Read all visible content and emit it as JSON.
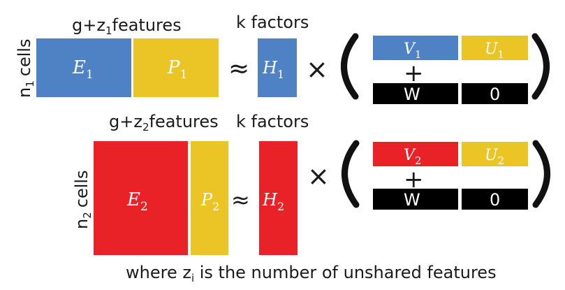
{
  "colors": {
    "blue": "#4f82c4",
    "yellow": "#ebc425",
    "red": "#e82226",
    "black": "#000000",
    "text": "#1a1a1a"
  },
  "row1": {
    "features_base": "g+z",
    "features_sub": "1",
    "features_suffix": "features",
    "factors_label": "k factors",
    "cells_var": "n",
    "cells_sub": "1",
    "cells_word": "cells",
    "E": "E",
    "E_sub": "1",
    "P": "P",
    "P_sub": "1",
    "H": "H",
    "H_sub": "1",
    "V": "V",
    "V_sub": "1",
    "U": "U",
    "U_sub": "1",
    "W": "W",
    "zero": "0"
  },
  "row2": {
    "features_base": "g+z",
    "features_sub": "2",
    "features_suffix": "features",
    "factors_label": "k factors",
    "cells_var": "n",
    "cells_sub": "2",
    "cells_word": "cells",
    "E": "E",
    "E_sub": "2",
    "P": "P",
    "P_sub": "2",
    "H": "H",
    "H_sub": "2",
    "V": "V",
    "V_sub": "2",
    "U": "U",
    "U_sub": "2",
    "W": "W",
    "zero": "0"
  },
  "operators": {
    "approx": "≈",
    "times": "×",
    "plus": "+"
  },
  "footnote": {
    "pre": "where z",
    "sub": "i",
    "post": " is the number of unshared features"
  }
}
